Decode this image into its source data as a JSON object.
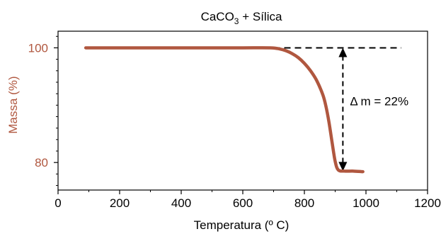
{
  "chart_data": {
    "type": "line",
    "title": {
      "main": "CaCO",
      "sub": "3",
      "rest": " + Sílica"
    },
    "xlabel": "Temperatura (º C)",
    "ylabel": "Massa (%)",
    "xlim": [
      0,
      1200
    ],
    "ylim": [
      75.2,
      102.9
    ],
    "x_ticks": [
      0,
      200,
      400,
      600,
      800,
      1000,
      1200
    ],
    "x_tick_labels": [
      "0",
      "200",
      "400",
      "600",
      "800",
      "1000",
      "1200"
    ],
    "y_ticks": [
      80,
      100
    ],
    "y_tick_labels": [
      "80",
      "100"
    ],
    "grid": false,
    "series_color": "#b0573f",
    "ylabel_color": "#b0573f",
    "series": [
      {
        "x": [
          90,
          300,
          500,
          600,
          690,
          720,
          740,
          760,
          780,
          800,
          820,
          840,
          860,
          870,
          880,
          890,
          900,
          910,
          930,
          960,
          990
        ],
        "y": [
          100,
          100,
          100,
          100,
          100,
          99.8,
          99.5,
          99.0,
          98.3,
          97.3,
          96.0,
          94.3,
          91.8,
          89.8,
          87.0,
          83.5,
          80.2,
          78.7,
          78.5,
          78.5,
          78.4
        ]
      }
    ],
    "annotation": {
      "text": "Δ m = 22%",
      "x": 925,
      "y_top": 100,
      "y_bottom": 78.5,
      "dashed_ref_x": [
        700,
        1115
      ]
    }
  }
}
